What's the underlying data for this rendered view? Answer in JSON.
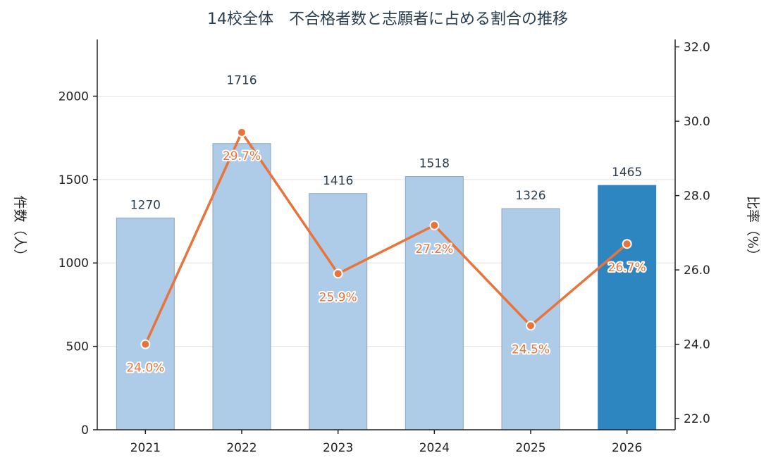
{
  "chart_data": {
    "type": "bar",
    "title": "14校全体　不合格者数と志願者に占める割合の推移",
    "categories": [
      "2021",
      "2022",
      "2023",
      "2024",
      "2025",
      "2026"
    ],
    "series": [
      {
        "type": "bar",
        "axis": "left",
        "values": [
          1270,
          1716,
          1416,
          1518,
          1326,
          1465
        ],
        "labels": [
          "1270",
          "1716",
          "1416",
          "1518",
          "1326",
          "1465"
        ]
      },
      {
        "type": "line",
        "axis": "right",
        "values": [
          24.0,
          29.7,
          25.9,
          27.2,
          24.5,
          26.7
        ],
        "labels": [
          "24.0%",
          "29.7%",
          "25.9%",
          "27.2%",
          "24.5%",
          "26.7%"
        ]
      }
    ],
    "ylabel_left": "件数（人）",
    "ylabel_right": "比率（%）",
    "ylim_left": [
      0,
      2340
    ],
    "ylim_right": [
      21.7,
      32.2
    ],
    "yticks_left": [
      "0",
      "500",
      "1000",
      "1500",
      "2000"
    ],
    "yticks_right": [
      "22.0",
      "24.0",
      "26.0",
      "28.0",
      "30.0",
      "32.0"
    ],
    "grid": true,
    "colors": {
      "bar": "#aecbe8",
      "bar_edge": "#8aa5c2",
      "bar_highlight": "#2e86c1",
      "line": "#e8743b",
      "grid": "#e3e3e3",
      "axis": "#222222"
    },
    "highlight_index": 5
  }
}
